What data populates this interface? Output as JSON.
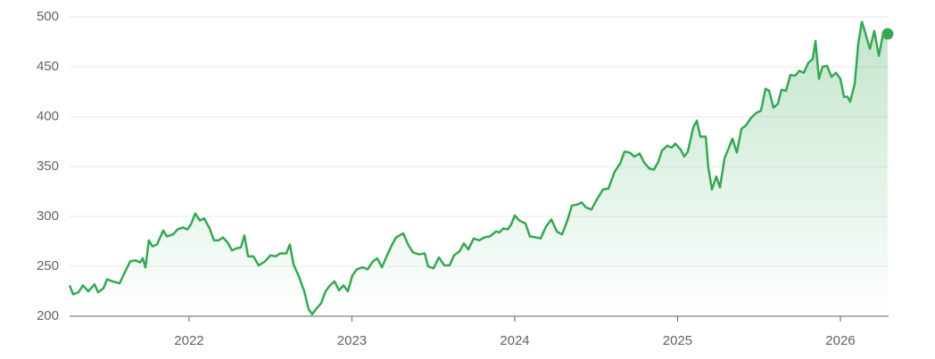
{
  "chart_data": {
    "type": "area",
    "color": "#34a853",
    "grid": true,
    "end_marker": true,
    "xlim": [
      2021.266,
      2026.296
    ],
    "xticks": [
      2022,
      2023,
      2024,
      2025,
      2026
    ],
    "ylim": [
      200,
      500
    ],
    "yticks": [
      200,
      250,
      300,
      350,
      400,
      450,
      500
    ],
    "x": [
      2021.266,
      2021.288,
      2021.321,
      2021.348,
      2021.381,
      2021.419,
      2021.441,
      2021.474,
      2021.496,
      2021.529,
      2021.573,
      2021.611,
      2021.638,
      2021.671,
      2021.699,
      2021.715,
      2021.732,
      2021.753,
      2021.775,
      2021.803,
      2021.841,
      2021.863,
      2021.901,
      2021.929,
      2021.962,
      2021.989,
      2022.011,
      2022.038,
      2022.066,
      2022.093,
      2022.126,
      2022.153,
      2022.181,
      2022.208,
      2022.236,
      2022.263,
      2022.29,
      2022.318,
      2022.34,
      2022.362,
      2022.395,
      2022.427,
      2022.466,
      2022.499,
      2022.532,
      2022.559,
      2022.597,
      2022.619,
      2022.641,
      2022.674,
      2022.707,
      2022.734,
      2022.756,
      2022.784,
      2022.811,
      2022.838,
      2022.866,
      2022.893,
      2022.921,
      2022.948,
      2022.975,
      2023.003,
      2023.03,
      2023.068,
      2023.096,
      2023.129,
      2023.156,
      2023.184,
      2023.216,
      2023.244,
      2023.271,
      2023.315,
      2023.348,
      2023.375,
      2023.414,
      2023.447,
      2023.468,
      2023.501,
      2023.534,
      2023.567,
      2023.6,
      2023.627,
      2023.66,
      2023.688,
      2023.715,
      2023.748,
      2023.781,
      2023.814,
      2023.847,
      2023.885,
      2023.907,
      2023.929,
      2023.956,
      2023.978,
      2024.0,
      2024.027,
      2024.066,
      2024.093,
      2024.132,
      2024.159,
      2024.192,
      2024.225,
      2024.258,
      2024.29,
      2024.323,
      2024.351,
      2024.384,
      2024.411,
      2024.438,
      2024.471,
      2024.504,
      2024.542,
      2024.575,
      2024.614,
      2024.647,
      2024.674,
      2024.707,
      2024.734,
      2024.767,
      2024.795,
      2024.827,
      2024.855,
      2024.882,
      2024.904,
      2024.937,
      2024.964,
      2024.986,
      2025.019,
      2025.041,
      2025.063,
      2025.096,
      2025.118,
      2025.14,
      2025.173,
      2025.189,
      2025.211,
      2025.238,
      2025.26,
      2025.288,
      2025.315,
      2025.337,
      2025.364,
      2025.392,
      2025.419,
      2025.452,
      2025.485,
      2025.512,
      2025.54,
      2025.562,
      2025.589,
      2025.616,
      2025.638,
      2025.666,
      2025.693,
      2025.721,
      2025.748,
      2025.775,
      2025.803,
      2025.83,
      2025.847,
      2025.868,
      2025.89,
      2025.918,
      2025.945,
      2025.973,
      2026.0,
      2026.022,
      2026.044,
      2026.06,
      2026.088,
      2026.11,
      2026.132,
      2026.153,
      2026.181,
      2026.208,
      2026.236,
      2026.263,
      2026.29
    ],
    "values": [
      231,
      222,
      224,
      231,
      225,
      232,
      224,
      228,
      237,
      235,
      233,
      246,
      255,
      256,
      254,
      258,
      249,
      276,
      270,
      272,
      286,
      280,
      282,
      287,
      289,
      287,
      292,
      303,
      296,
      298,
      288,
      276,
      276,
      279,
      274,
      266,
      268,
      269,
      281,
      260,
      260,
      251,
      255,
      261,
      260,
      263,
      263,
      272,
      252,
      240,
      225,
      207,
      202,
      208,
      213,
      225,
      231,
      235,
      226,
      231,
      225,
      241,
      247,
      249,
      247,
      255,
      258,
      249,
      261,
      271,
      279,
      283,
      271,
      264,
      262,
      263,
      250,
      248,
      259,
      251,
      251,
      261,
      265,
      273,
      267,
      278,
      276,
      279,
      280,
      285,
      284,
      288,
      287,
      292,
      301,
      296,
      293,
      280,
      279,
      278,
      290,
      297,
      285,
      282,
      296,
      311,
      312,
      314,
      309,
      307,
      317,
      327,
      328,
      345,
      353,
      365,
      364,
      360,
      363,
      354,
      348,
      347,
      355,
      366,
      371,
      369,
      373,
      367,
      360,
      365,
      389,
      396,
      380,
      380,
      349,
      327,
      340,
      329,
      358,
      369,
      378,
      364,
      388,
      391,
      399,
      404,
      406,
      428,
      426,
      409,
      413,
      427,
      426,
      442,
      441,
      446,
      444,
      454,
      458,
      476,
      438,
      450,
      451,
      440,
      444,
      438,
      420,
      420,
      415,
      433,
      474,
      495,
      484,
      468,
      486,
      461,
      484,
      483
    ]
  }
}
